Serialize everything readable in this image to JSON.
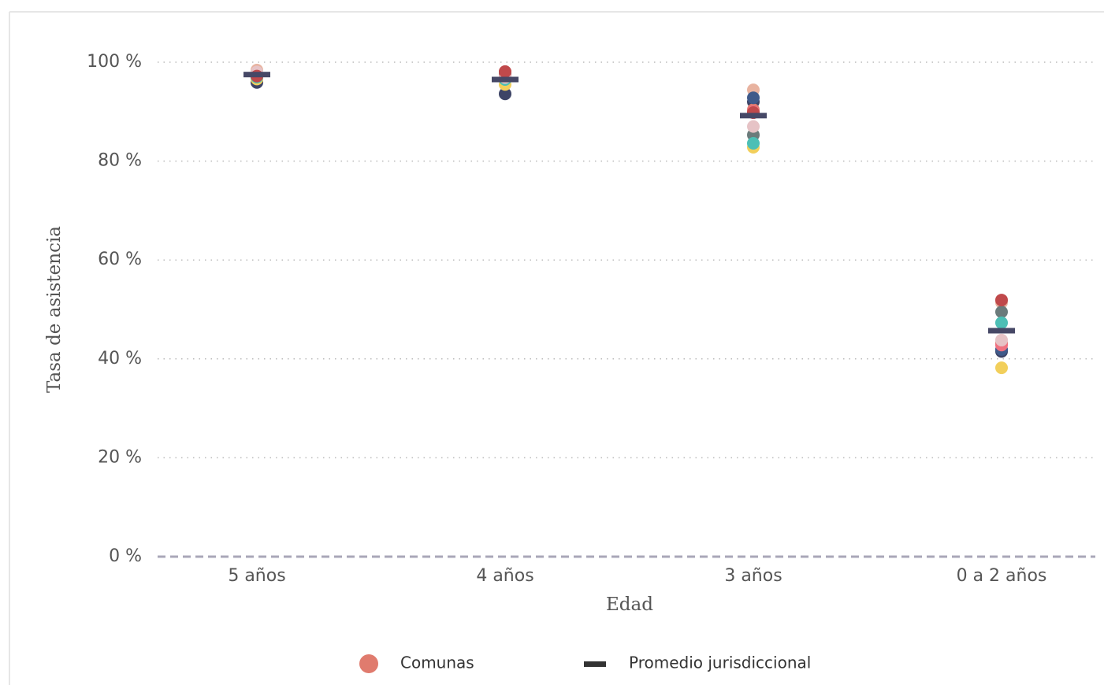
{
  "chart_data": {
    "type": "strip",
    "xlabel": "Edad",
    "ylabel": "Tasa de asistencia",
    "categories": [
      "5 años",
      "4 años",
      "3 años",
      "0 a 2 años"
    ],
    "ylim": [
      0,
      100
    ],
    "yticks": [
      {
        "value": 0,
        "label": "0 %"
      },
      {
        "value": 20,
        "label": "20 %"
      },
      {
        "value": 40,
        "label": "40 %"
      },
      {
        "value": 60,
        "label": "60 %"
      },
      {
        "value": 80,
        "label": "80 %"
      },
      {
        "value": 100,
        "label": "100 %"
      }
    ],
    "grid": true,
    "series": [
      {
        "name": "Comunas",
        "color": "#e07b6e",
        "point_colors": [
          "#e8b3a0",
          "#3d4466",
          "#f2cf5b",
          "#e07b6e",
          "#6b7b7b",
          "#3f5a8a",
          "#4dbfb5",
          "#f07180",
          "#e6c3c6",
          "#c0494b"
        ],
        "values": [
          [
            98.4,
            95.9,
            96.6,
            97.3,
            97.4,
            97.1,
            97.0,
            97.6,
            98.0,
            97.2
          ],
          [
            97.0,
            93.6,
            95.5,
            98.0,
            97.6,
            96.8,
            96.5,
            97.2,
            96.9,
            98.1
          ],
          [
            94.4,
            92.0,
            82.8,
            90.4,
            85.3,
            92.8,
            83.6,
            90.0,
            87.0,
            89.8
          ],
          [
            51.4,
            41.5,
            38.2,
            43.2,
            49.5,
            41.9,
            47.3,
            42.8,
            43.8,
            51.9
          ]
        ]
      },
      {
        "name": "Promedio jurisdiccional",
        "color": "#464866",
        "values": [
          97.5,
          96.5,
          89.2,
          45.7
        ]
      }
    ]
  }
}
